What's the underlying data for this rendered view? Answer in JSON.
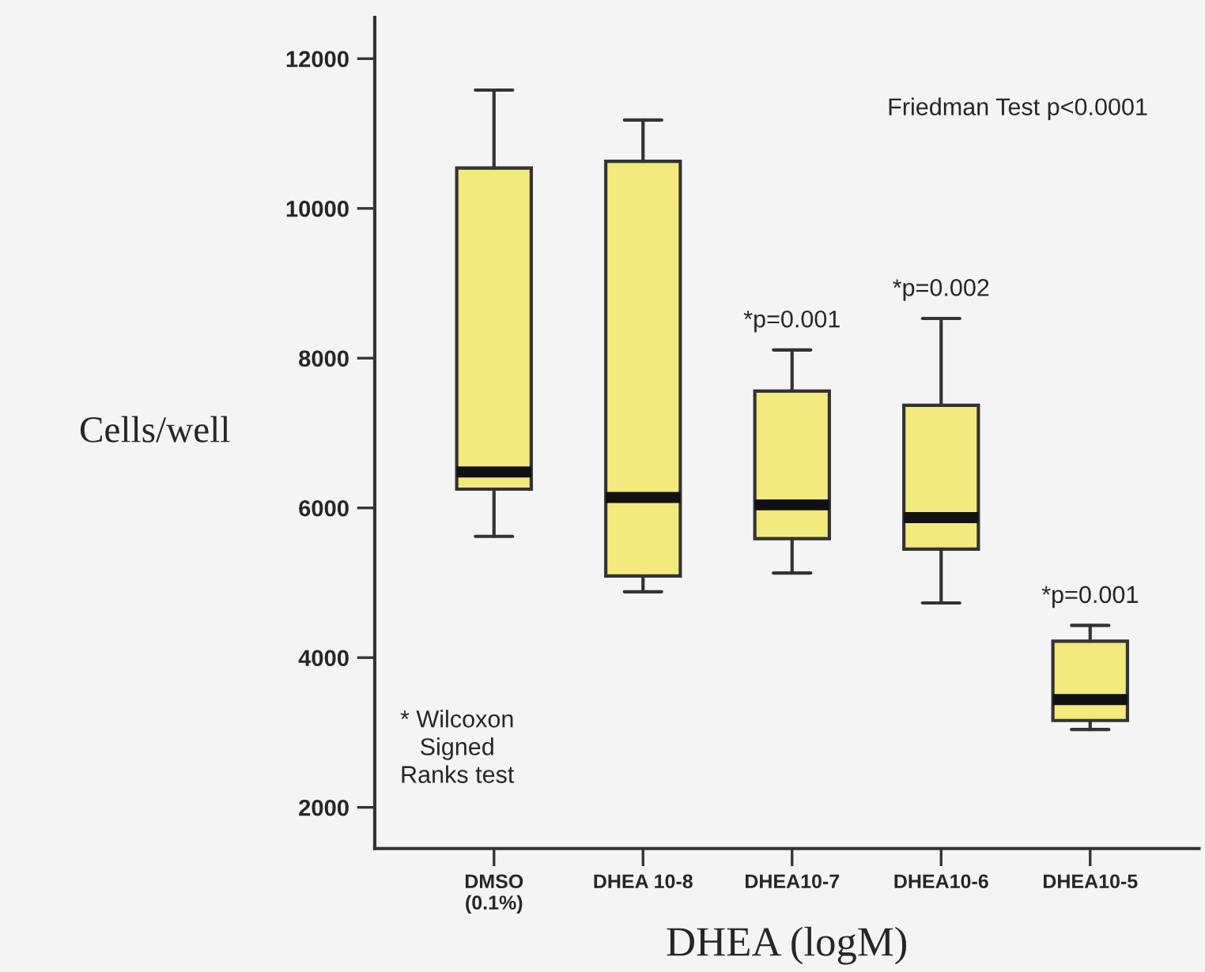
{
  "chart_data": {
    "type": "box",
    "xlabel": "DHEA (logM)",
    "ylabel": "Cells/well",
    "categories": [
      "DMSO\n(0.1%)",
      "DHEA 10-8",
      "DHEA10-7",
      "DHEA10-6",
      "DHEA10-5"
    ],
    "color": "#f2ea7c",
    "boxes": [
      {
        "low": 5620,
        "q1": 6250,
        "median": 6480,
        "q3": 10540,
        "high": 11580
      },
      {
        "low": 4880,
        "q1": 5090,
        "median": 6140,
        "q3": 10630,
        "high": 11180
      },
      {
        "low": 5130,
        "q1": 5590,
        "median": 6040,
        "q3": 7560,
        "high": 8110
      },
      {
        "low": 4730,
        "q1": 5450,
        "median": 5870,
        "q3": 7370,
        "high": 8530
      },
      {
        "low": 3040,
        "q1": 3160,
        "median": 3440,
        "q3": 4220,
        "high": 4430
      }
    ],
    "ylim": [
      1450,
      12550
    ],
    "yticks": [
      2000,
      4000,
      6000,
      8000,
      10000,
      12000
    ],
    "grid": false,
    "annotations": [
      "Friedman Test p<0.0001",
      "* Wilcoxon\nSigned\nRanks test",
      {
        "text": "*p=0.001",
        "x": "DHEA10-7",
        "y": 8110
      },
      {
        "text": "*p=0.002",
        "x": "DHEA10-6",
        "y": 8530
      },
      {
        "text": "*p=0.001",
        "x": "DHEA10-5",
        "y": 4430
      }
    ]
  }
}
